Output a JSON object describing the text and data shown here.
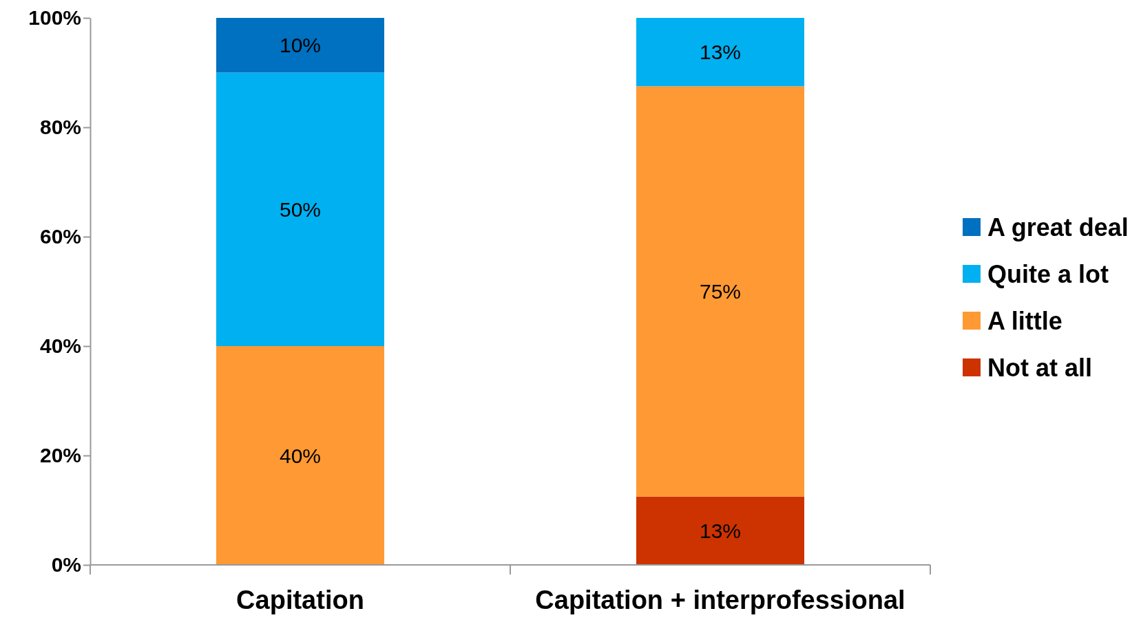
{
  "chart_data": {
    "type": "bar",
    "stacked": true,
    "categories": [
      "Capitation",
      "Capitation + interprofessional"
    ],
    "series": [
      {
        "name": "Not at all",
        "color": "#cc3300",
        "values": [
          null,
          12.5
        ],
        "value_labels": [
          null,
          "13%"
        ]
      },
      {
        "name": "A little",
        "color": "#ff9933",
        "values": [
          40,
          75
        ],
        "value_labels": [
          "40%",
          "75%"
        ]
      },
      {
        "name": "Quite a lot",
        "color": "#00b0f0",
        "values": [
          50,
          12.5
        ],
        "value_labels": [
          "50%",
          "13%"
        ]
      },
      {
        "name": "A great deal",
        "color": "#0070c0",
        "values": [
          10,
          null
        ],
        "value_labels": [
          "10%",
          null
        ]
      }
    ],
    "ylim": [
      0,
      100
    ],
    "yticks": [
      {
        "value": 0,
        "label": "0%"
      },
      {
        "value": 20,
        "label": "20%"
      },
      {
        "value": 40,
        "label": "40%"
      },
      {
        "value": 60,
        "label": "60%"
      },
      {
        "value": 80,
        "label": "80%"
      },
      {
        "value": 100,
        "label": "100%"
      }
    ],
    "grid": false,
    "legend": "right"
  }
}
